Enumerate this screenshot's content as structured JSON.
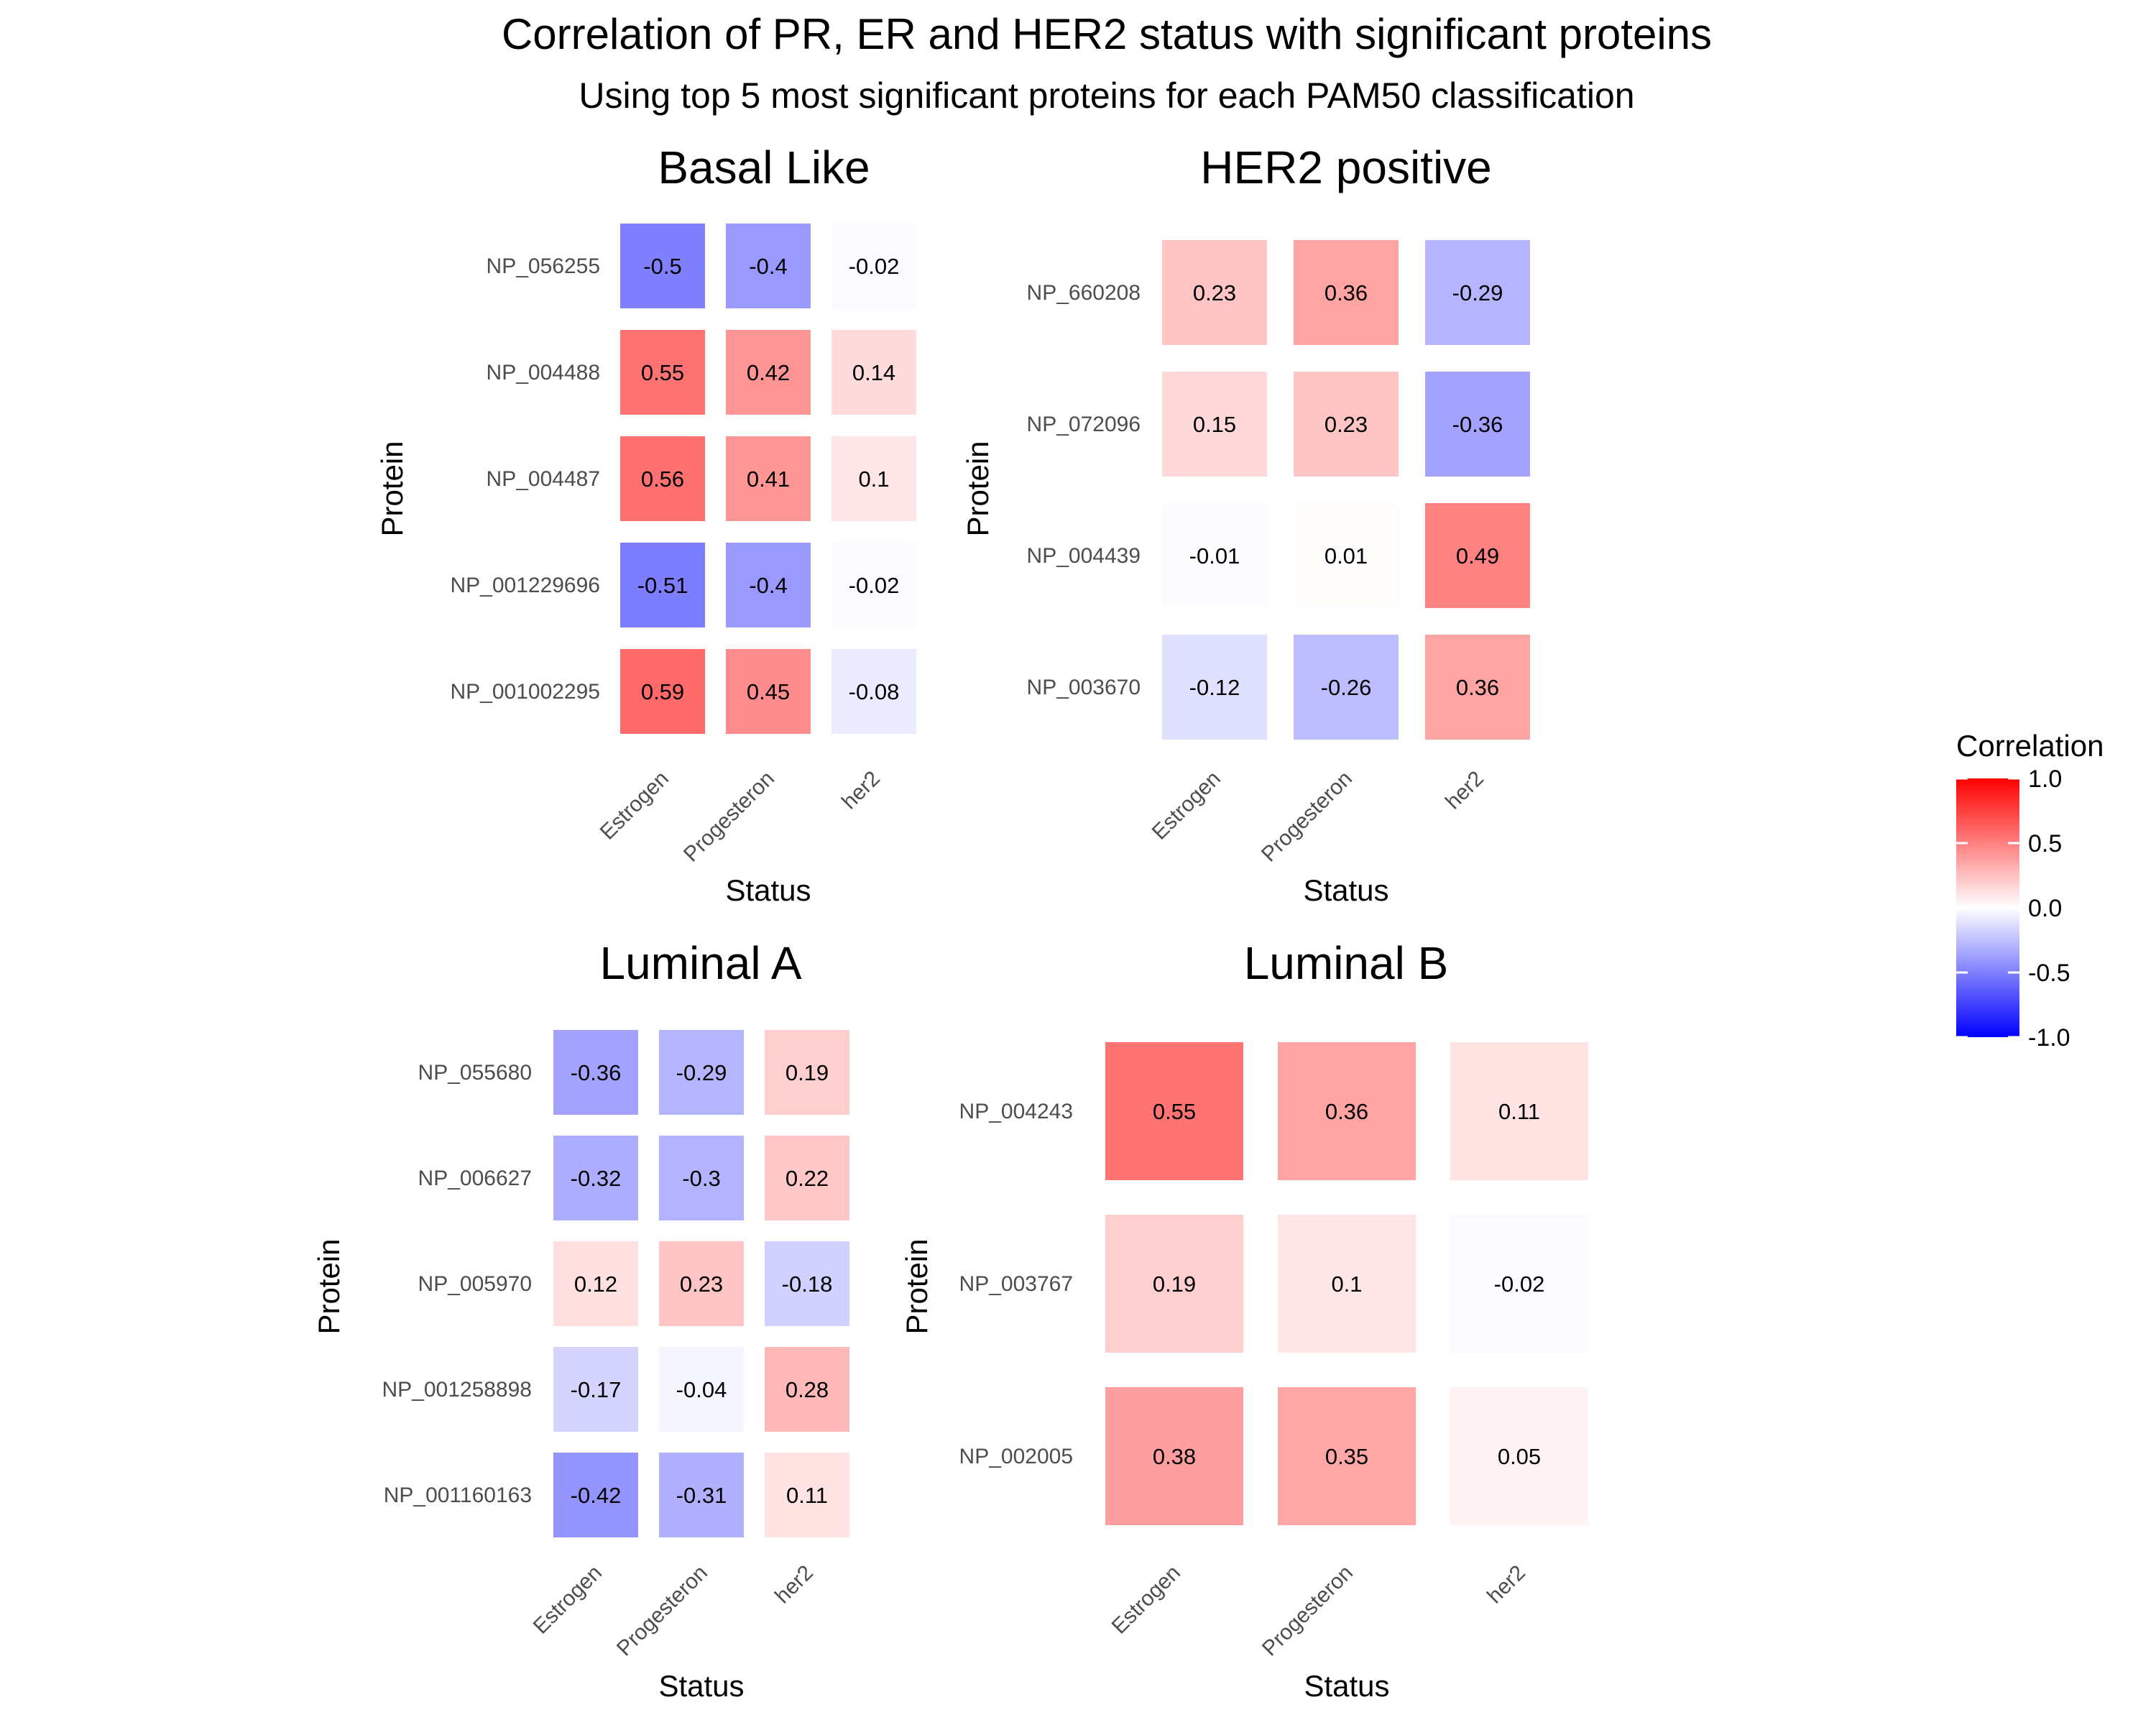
{
  "chart_data": {
    "type": "heatmap",
    "title": "Correlation of PR, ER and HER2 status with significant proteins",
    "subtitle": "Using top 5 most significant proteins for each PAM50 classification",
    "legend": {
      "title": "Correlation",
      "ticks": [
        "1.0",
        "0.5",
        "0.0",
        "-0.5",
        "-1.0"
      ],
      "tick_values": [
        1.0,
        0.5,
        0.0,
        -0.5,
        -1.0
      ],
      "range": [
        -1,
        1
      ],
      "low_color": "#0000ff",
      "mid_color": "#ffffff",
      "high_color": "#ff0000",
      "placement": "right"
    },
    "panels": [
      {
        "title": "Basal Like",
        "xlabel": "Status",
        "ylabel": "Protein",
        "x": [
          "Estrogen",
          "Progesteron",
          "her2"
        ],
        "y": [
          "NP_056255",
          "NP_004488",
          "NP_004487",
          "NP_001229696",
          "NP_001002295"
        ],
        "values": [
          [
            -0.5,
            -0.4,
            -0.02
          ],
          [
            0.55,
            0.42,
            0.14
          ],
          [
            0.56,
            0.41,
            0.1
          ],
          [
            -0.51,
            -0.4,
            -0.02
          ],
          [
            0.59,
            0.45,
            -0.08
          ]
        ],
        "labels": [
          [
            "-0.5",
            "-0.4",
            "-0.02"
          ],
          [
            "0.55",
            "0.42",
            "0.14"
          ],
          [
            "0.56",
            "0.41",
            "0.1"
          ],
          [
            "-0.51",
            "-0.4",
            "-0.02"
          ],
          [
            "0.59",
            "0.45",
            "-0.08"
          ]
        ]
      },
      {
        "title": "HER2 positive",
        "xlabel": "Status",
        "ylabel": "Protein",
        "x": [
          "Estrogen",
          "Progesteron",
          "her2"
        ],
        "y": [
          "NP_660208",
          "NP_072096",
          "NP_004439",
          "NP_003670"
        ],
        "values": [
          [
            0.23,
            0.36,
            -0.29
          ],
          [
            0.15,
            0.23,
            -0.36
          ],
          [
            -0.01,
            0.01,
            0.49
          ],
          [
            -0.12,
            -0.26,
            0.36
          ]
        ],
        "labels": [
          [
            "0.23",
            "0.36",
            "-0.29"
          ],
          [
            "0.15",
            "0.23",
            "-0.36"
          ],
          [
            "-0.01",
            "0.01",
            "0.49"
          ],
          [
            "-0.12",
            "-0.26",
            "0.36"
          ]
        ]
      },
      {
        "title": "Luminal A",
        "xlabel": "Status",
        "ylabel": "Protein",
        "x": [
          "Estrogen",
          "Progesteron",
          "her2"
        ],
        "y": [
          "NP_055680",
          "NP_006627",
          "NP_005970",
          "NP_001258898",
          "NP_001160163"
        ],
        "values": [
          [
            -0.36,
            -0.29,
            0.19
          ],
          [
            -0.32,
            -0.3,
            0.22
          ],
          [
            0.12,
            0.23,
            -0.18
          ],
          [
            -0.17,
            -0.04,
            0.28
          ],
          [
            -0.42,
            -0.31,
            0.11
          ]
        ],
        "labels": [
          [
            "-0.36",
            "-0.29",
            "0.19"
          ],
          [
            "-0.32",
            "-0.3",
            "0.22"
          ],
          [
            "0.12",
            "0.23",
            "-0.18"
          ],
          [
            "-0.17",
            "-0.04",
            "0.28"
          ],
          [
            "-0.42",
            "-0.31",
            "0.11"
          ]
        ]
      },
      {
        "title": "Luminal B",
        "xlabel": "Status",
        "ylabel": "Protein",
        "x": [
          "Estrogen",
          "Progesteron",
          "her2"
        ],
        "y": [
          "NP_004243",
          "NP_003767",
          "NP_002005"
        ],
        "values": [
          [
            0.55,
            0.36,
            0.11
          ],
          [
            0.19,
            0.1,
            -0.02
          ],
          [
            0.38,
            0.35,
            0.05
          ]
        ],
        "labels": [
          [
            "0.55",
            "0.36",
            "0.11"
          ],
          [
            "0.19",
            "0.1",
            "-0.02"
          ],
          [
            "0.38",
            "0.35",
            "0.05"
          ]
        ]
      }
    ]
  }
}
